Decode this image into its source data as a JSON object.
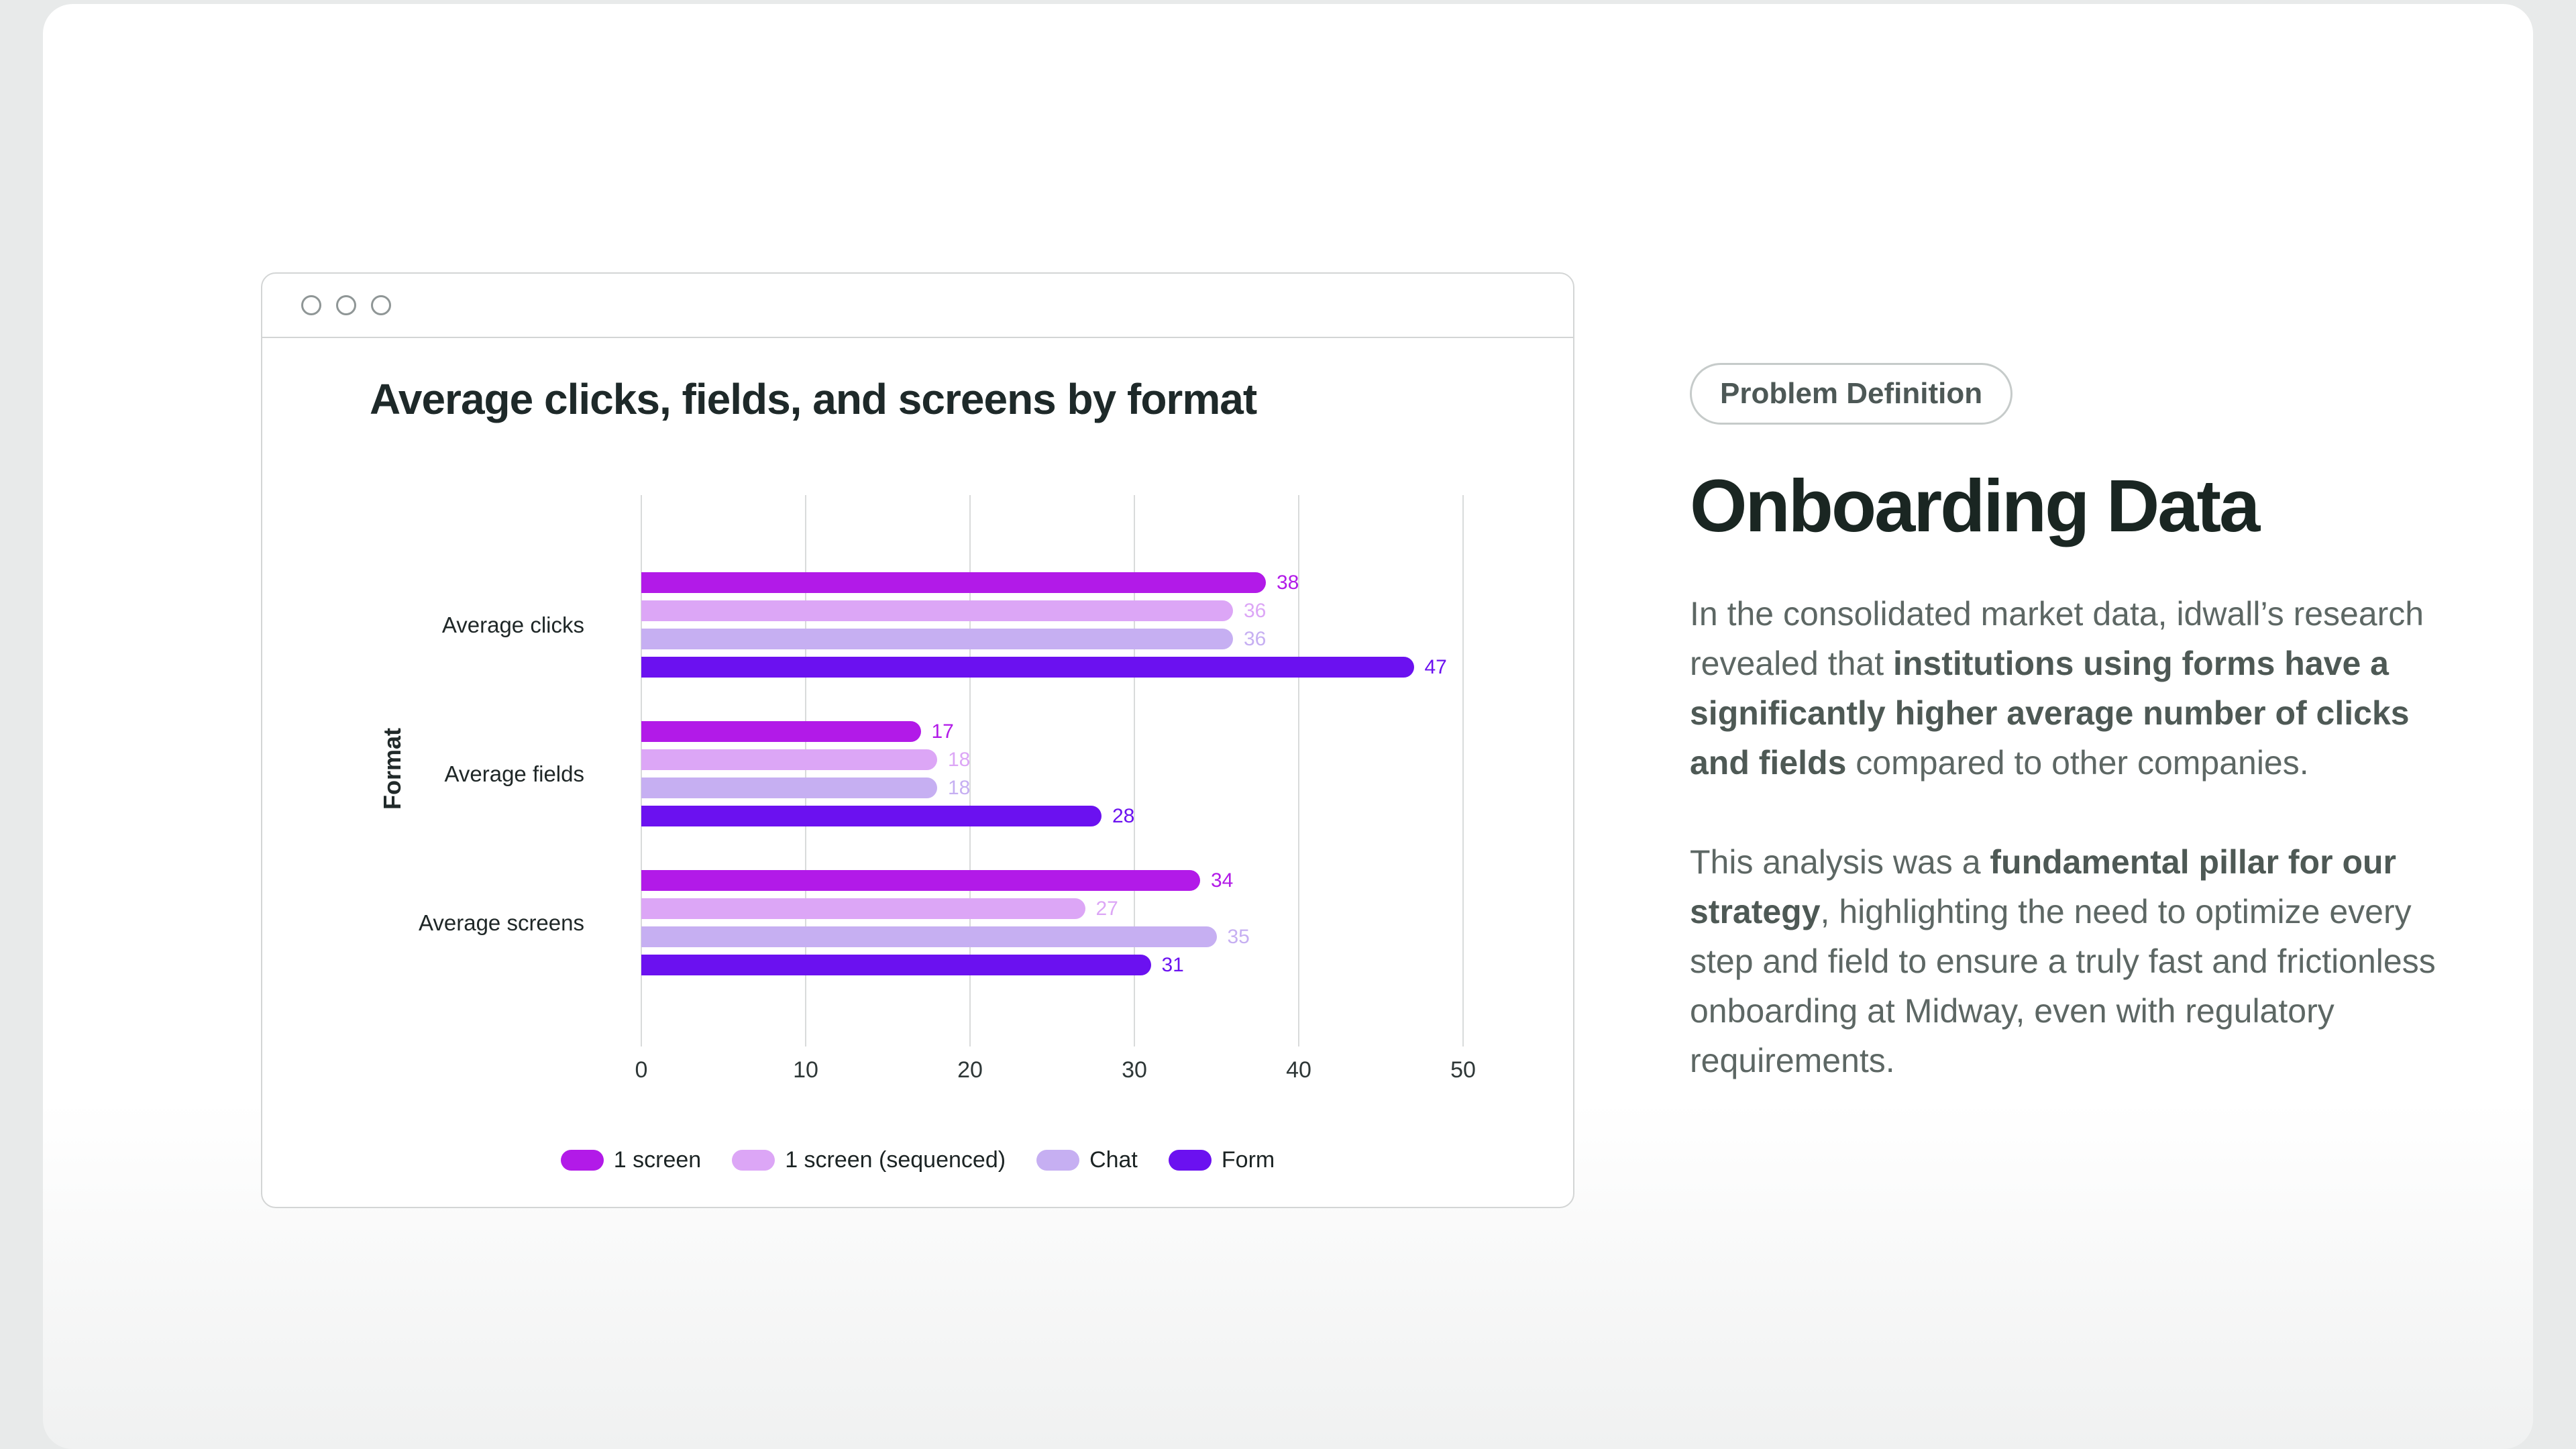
{
  "window": {
    "controls": [
      "dot",
      "dot",
      "dot"
    ]
  },
  "chart_data": {
    "type": "bar",
    "orientation": "horizontal",
    "title": "Average clicks, fields, and screens by format",
    "ylabel": "Format",
    "xlabel": "",
    "categories": [
      "Average clicks",
      "Average fields",
      "Average screens"
    ],
    "series": [
      {
        "name": "1 screen",
        "color": "#b21ae8",
        "values": [
          38,
          17,
          34
        ]
      },
      {
        "name": "1 screen (sequenced)",
        "color": "#dca6f6",
        "values": [
          36,
          18,
          27
        ]
      },
      {
        "name": "Chat",
        "color": "#c6aff2",
        "values": [
          36,
          18,
          35
        ]
      },
      {
        "name": "Form",
        "color": "#6b11f0",
        "values": [
          47,
          28,
          31
        ]
      }
    ],
    "x_ticks": [
      0,
      10,
      20,
      30,
      40,
      50
    ],
    "xlim": [
      0,
      50
    ],
    "grid": "vertical",
    "legend_position": "bottom",
    "value_labels": true
  },
  "content": {
    "badge": "Problem Definition",
    "title": "Onboarding Data",
    "p1": [
      {
        "text": "In the consolidated market data, idwall’s research revealed that ",
        "bold": false
      },
      {
        "text": "institutions using forms have a significantly higher average number of clicks and fields",
        "bold": true
      },
      {
        "text": " compared to other companies.",
        "bold": false
      }
    ],
    "p2": [
      {
        "text": "This analysis was a ",
        "bold": false
      },
      {
        "text": "fundamental pillar for our strategy",
        "bold": true
      },
      {
        "text": ", highlighting the need to optimize every step and field to ensure a truly fast and frictionless onboarding at Midway, even with regulatory requirements.",
        "bold": false
      }
    ]
  }
}
